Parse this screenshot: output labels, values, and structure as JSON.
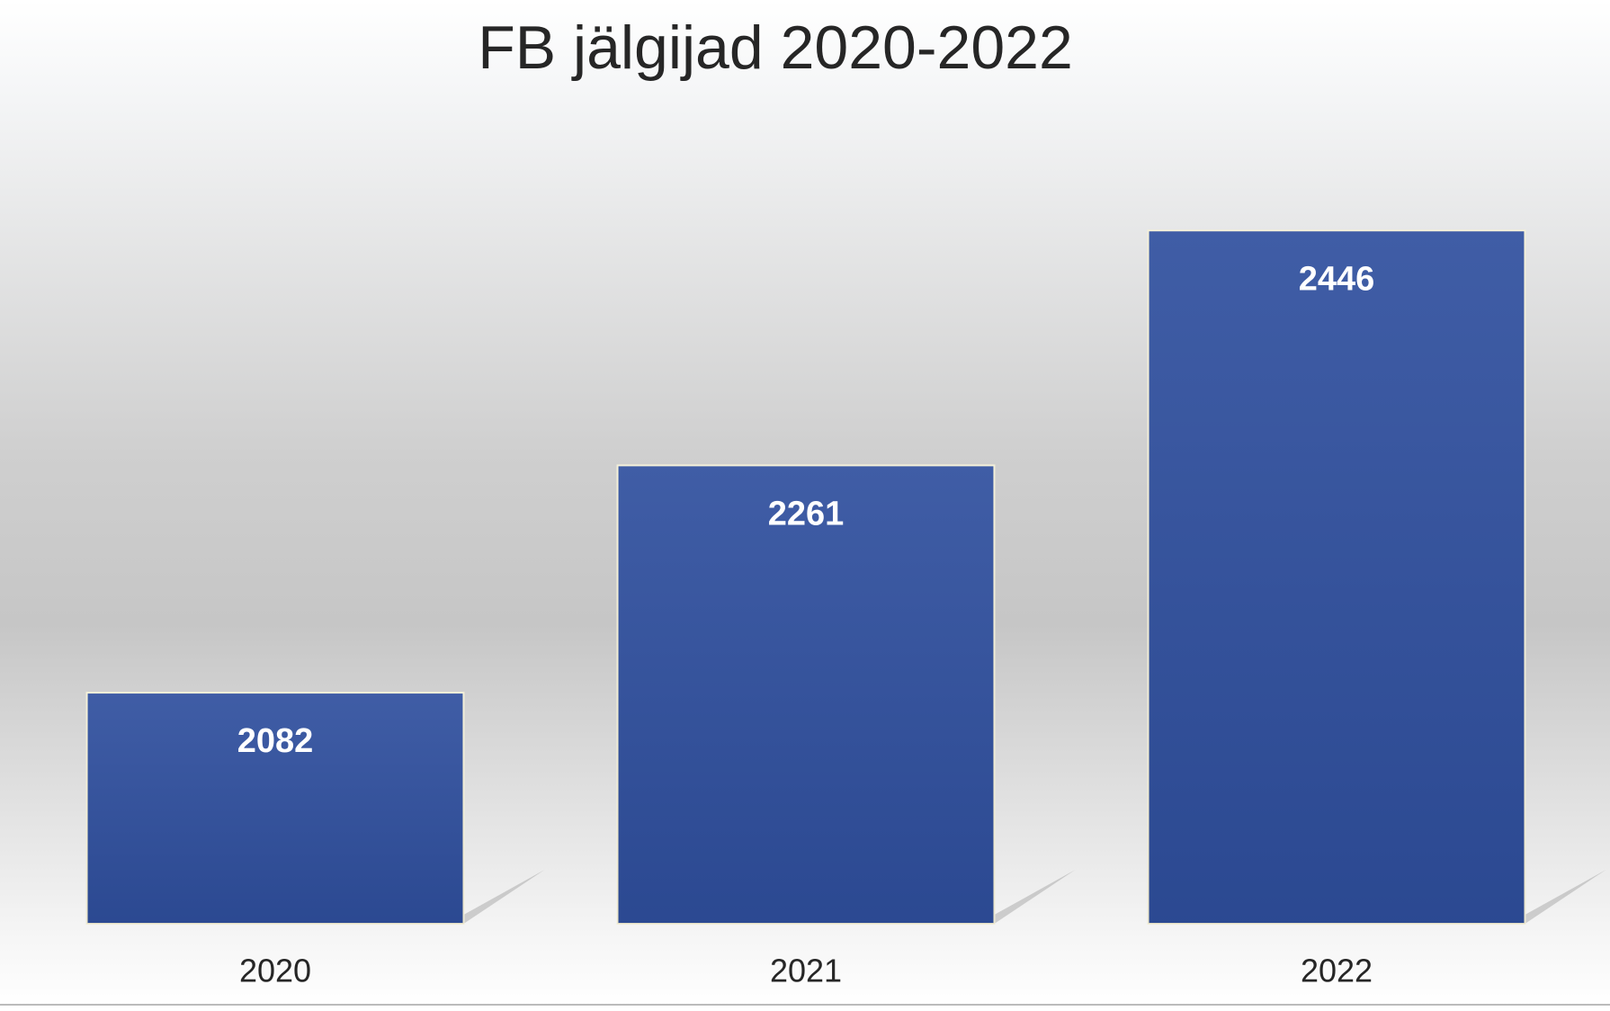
{
  "chart_data": {
    "type": "bar",
    "title": "FB jälgijad 2020-2022",
    "categories": [
      "2020",
      "2021",
      "2022"
    ],
    "values": [
      2082,
      2261,
      2446
    ],
    "color": "#2f4f9e",
    "ylim": [
      1900,
      2500
    ],
    "data_labels": true
  }
}
